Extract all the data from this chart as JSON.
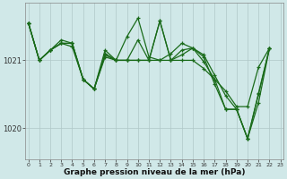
{
  "background_color": "#d0e8e8",
  "plot_bg_color": "#d0e8e8",
  "grid_color": "#b0c8c8",
  "line_color": "#1a6b1a",
  "marker_color": "#1a6b1a",
  "xlabel": "Graphe pression niveau de la mer (hPa)",
  "xlabel_fontsize": 6.5,
  "xticks": [
    0,
    1,
    2,
    3,
    4,
    5,
    6,
    7,
    8,
    9,
    10,
    11,
    12,
    13,
    14,
    15,
    16,
    17,
    18,
    19,
    20,
    21,
    22,
    23
  ],
  "yticks": [
    1020,
    1021
  ],
  "ylim": [
    1019.55,
    1021.85
  ],
  "xlim": [
    -0.3,
    23.3
  ],
  "series": [
    [
      1021.55,
      1021.0,
      1021.15,
      1021.25,
      1021.2,
      1020.72,
      1020.58,
      1021.05,
      1021.0,
      1021.0,
      1021.0,
      1021.0,
      1021.0,
      1021.0,
      1021.0,
      1021.0,
      1020.88,
      1020.72,
      1020.55,
      1020.32,
      1020.32,
      1020.9,
      1021.18
    ],
    [
      1021.55,
      1021.0,
      1021.15,
      1021.3,
      1021.25,
      1020.72,
      1020.58,
      1021.1,
      1021.0,
      1021.35,
      1021.62,
      1021.05,
      1021.0,
      1021.1,
      1021.25,
      1021.18,
      1021.05,
      1020.65,
      1020.28,
      1020.28,
      1019.85,
      1020.5,
      1021.18
    ],
    [
      1021.55,
      1021.0,
      1021.15,
      1021.25,
      1021.25,
      1020.72,
      1020.58,
      1021.15,
      1021.0,
      1021.0,
      1021.3,
      1021.0,
      1021.58,
      1021.0,
      1021.15,
      1021.18,
      1021.08,
      1020.78,
      1020.48,
      1020.28,
      1019.85,
      1020.38,
      1021.18
    ],
    [
      1021.55,
      1021.0,
      1021.15,
      1021.25,
      1021.25,
      1020.72,
      1020.58,
      1021.08,
      1021.0,
      1021.0,
      1021.0,
      1021.0,
      1021.58,
      1021.0,
      1021.08,
      1021.18,
      1020.98,
      1020.72,
      1020.28,
      1020.28,
      1019.85,
      1020.52,
      1021.18
    ]
  ]
}
